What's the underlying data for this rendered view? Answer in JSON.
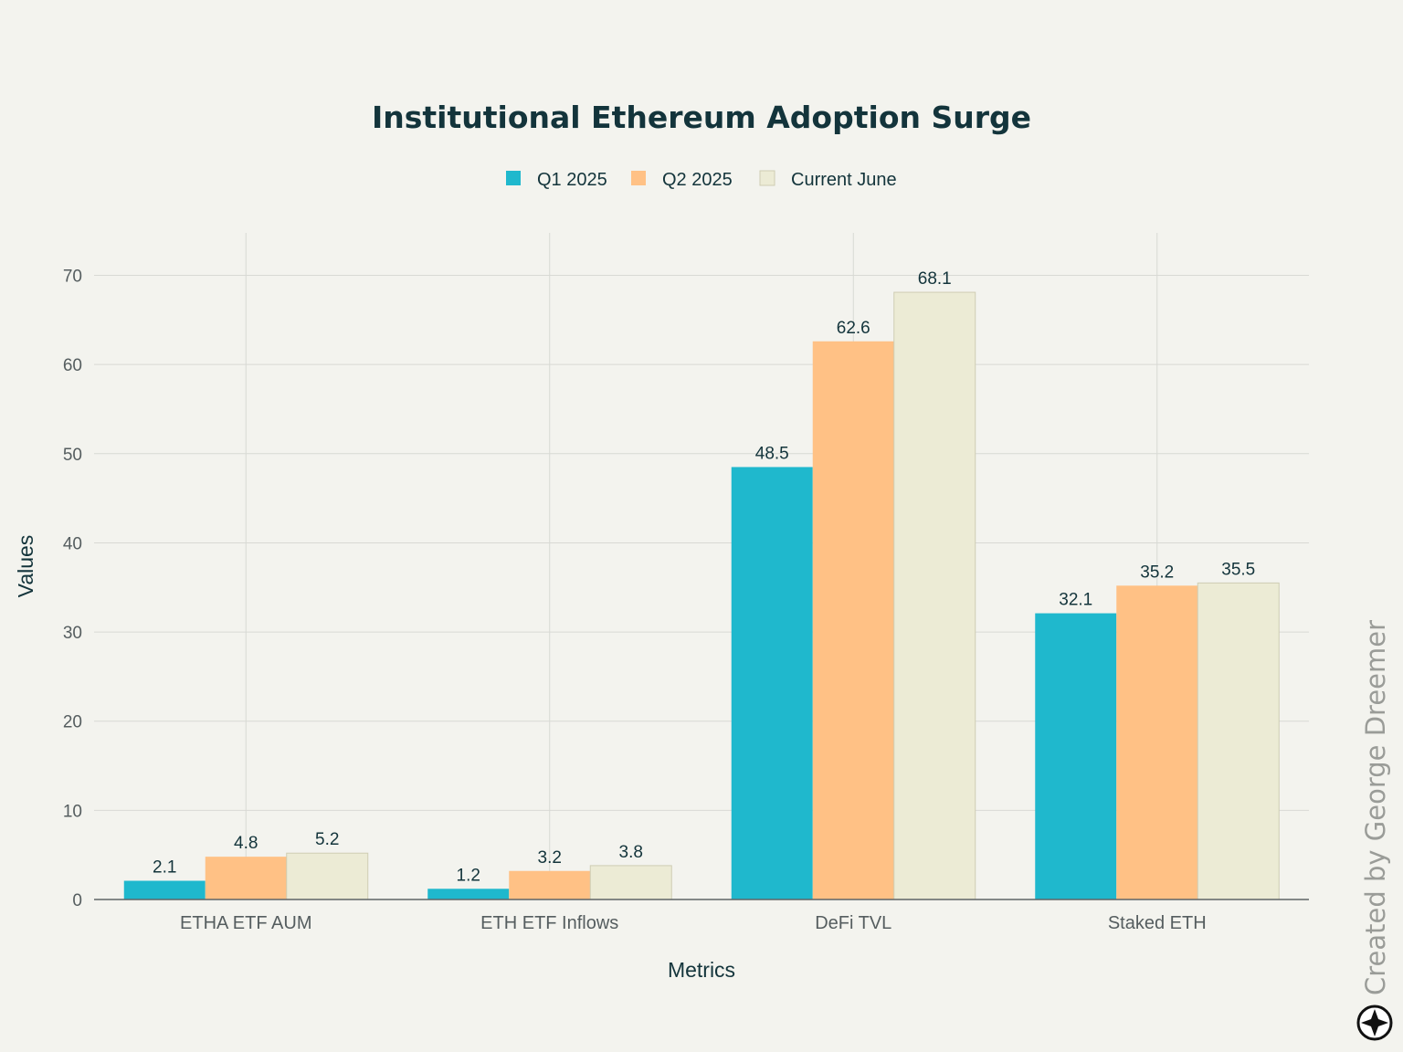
{
  "chart_data": {
    "type": "bar",
    "title": "Institutional Ethereum Adoption Surge",
    "xlabel": "Metrics",
    "ylabel": "Values",
    "categories": [
      "ETHA ETF AUM",
      "ETH ETF Inflows",
      "DeFi TVL",
      "Staked ETH"
    ],
    "series": [
      {
        "name": "Q1 2025",
        "values": [
          2.1,
          1.2,
          48.5,
          32.1
        ],
        "color": "#1fb8cd"
      },
      {
        "name": "Q2 2025",
        "values": [
          4.8,
          3.2,
          62.6,
          35.2
        ],
        "color": "#ffc185"
      },
      {
        "name": "Current June",
        "values": [
          5.2,
          3.8,
          68.1,
          35.5
        ],
        "color": "#ecebd5"
      }
    ],
    "ylim": [
      0,
      75
    ],
    "yticks": [
      0,
      10,
      20,
      30,
      40,
      50,
      60,
      70
    ],
    "grid": true,
    "legend_position": "top-center"
  },
  "watermark": {
    "text": "Created by George Dreemer",
    "icon": "compass-star-icon"
  }
}
